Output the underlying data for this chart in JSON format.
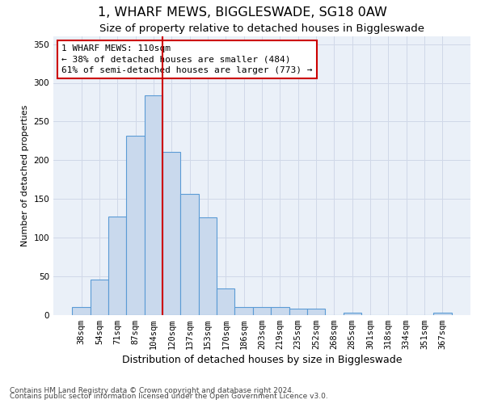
{
  "title1": "1, WHARF MEWS, BIGGLESWADE, SG18 0AW",
  "title2": "Size of property relative to detached houses in Biggleswade",
  "xlabel": "Distribution of detached houses by size in Biggleswade",
  "ylabel": "Number of detached properties",
  "categories": [
    "38sqm",
    "54sqm",
    "71sqm",
    "87sqm",
    "104sqm",
    "120sqm",
    "137sqm",
    "153sqm",
    "170sqm",
    "186sqm",
    "203sqm",
    "219sqm",
    "235sqm",
    "252sqm",
    "268sqm",
    "285sqm",
    "301sqm",
    "318sqm",
    "334sqm",
    "351sqm",
    "367sqm"
  ],
  "values": [
    10,
    46,
    127,
    232,
    284,
    211,
    157,
    126,
    34,
    10,
    10,
    10,
    8,
    8,
    0,
    3,
    0,
    0,
    0,
    0,
    3
  ],
  "bar_color": "#c9d9ed",
  "bar_edge_color": "#5b9bd5",
  "bar_edge_width": 0.8,
  "vline_color": "#cc0000",
  "annotation_line1": "1 WHARF MEWS: 110sqm",
  "annotation_line2": "← 38% of detached houses are smaller (484)",
  "annotation_line3": "61% of semi-detached houses are larger (773) →",
  "annotation_box_color": "white",
  "annotation_box_edge": "#cc0000",
  "ylim": [
    0,
    360
  ],
  "yticks": [
    0,
    50,
    100,
    150,
    200,
    250,
    300,
    350
  ],
  "grid_color": "#d0d8e8",
  "bg_color": "#eaf0f8",
  "footnote1": "Contains HM Land Registry data © Crown copyright and database right 2024.",
  "footnote2": "Contains public sector information licensed under the Open Government Licence v3.0.",
  "title1_fontsize": 11.5,
  "title2_fontsize": 9.5,
  "xlabel_fontsize": 9,
  "ylabel_fontsize": 8,
  "tick_fontsize": 7.5,
  "annotation_fontsize": 8,
  "footnote_fontsize": 6.5
}
